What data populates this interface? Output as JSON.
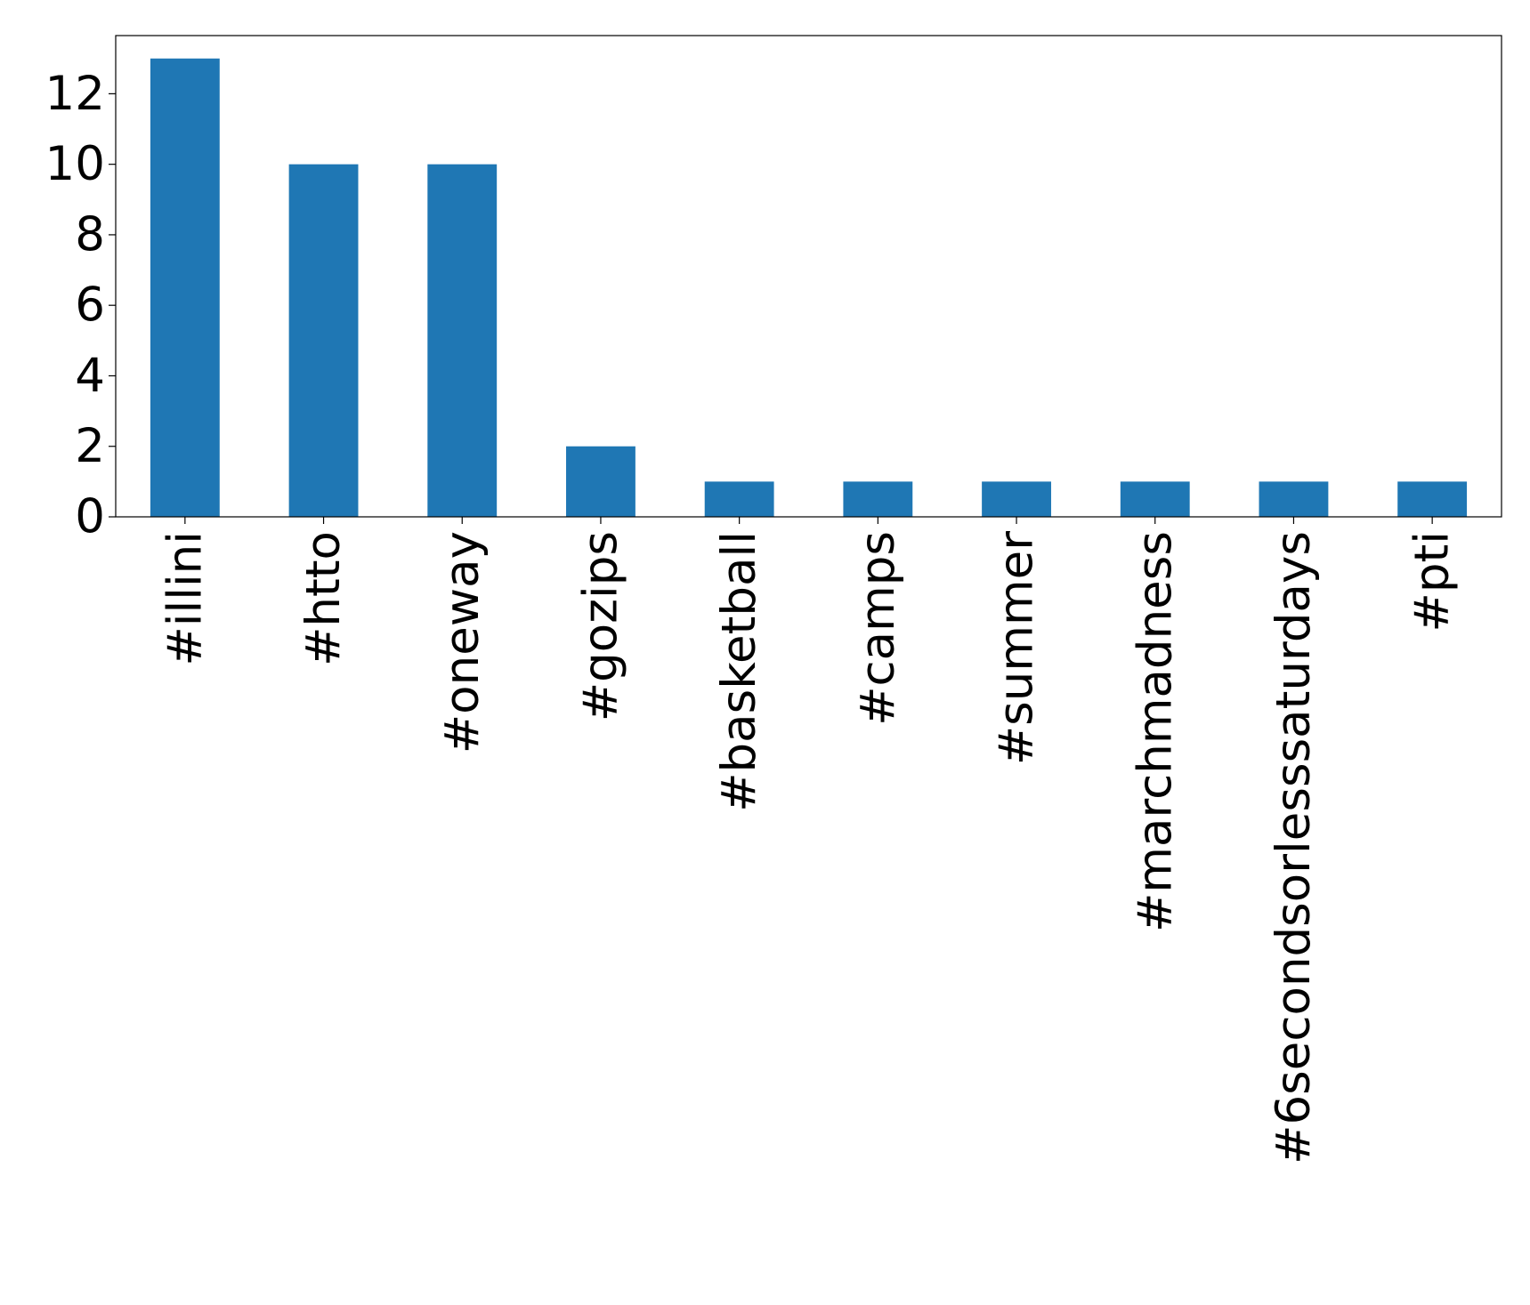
{
  "chart_data": {
    "type": "bar",
    "categories": [
      "#illini",
      "#htto",
      "#oneway",
      "#gozips",
      "#basketball",
      "#camps",
      "#summer",
      "#marchmadness",
      "#6secondsorlesssaturdays",
      "#pti"
    ],
    "values": [
      13,
      10,
      10,
      2,
      1,
      1,
      1,
      1,
      1,
      1
    ],
    "color": "#1f77b4",
    "ylim": [
      0,
      13.65
    ],
    "yticks": [
      0,
      2,
      4,
      6,
      8,
      10,
      12
    ],
    "grid": false
  }
}
